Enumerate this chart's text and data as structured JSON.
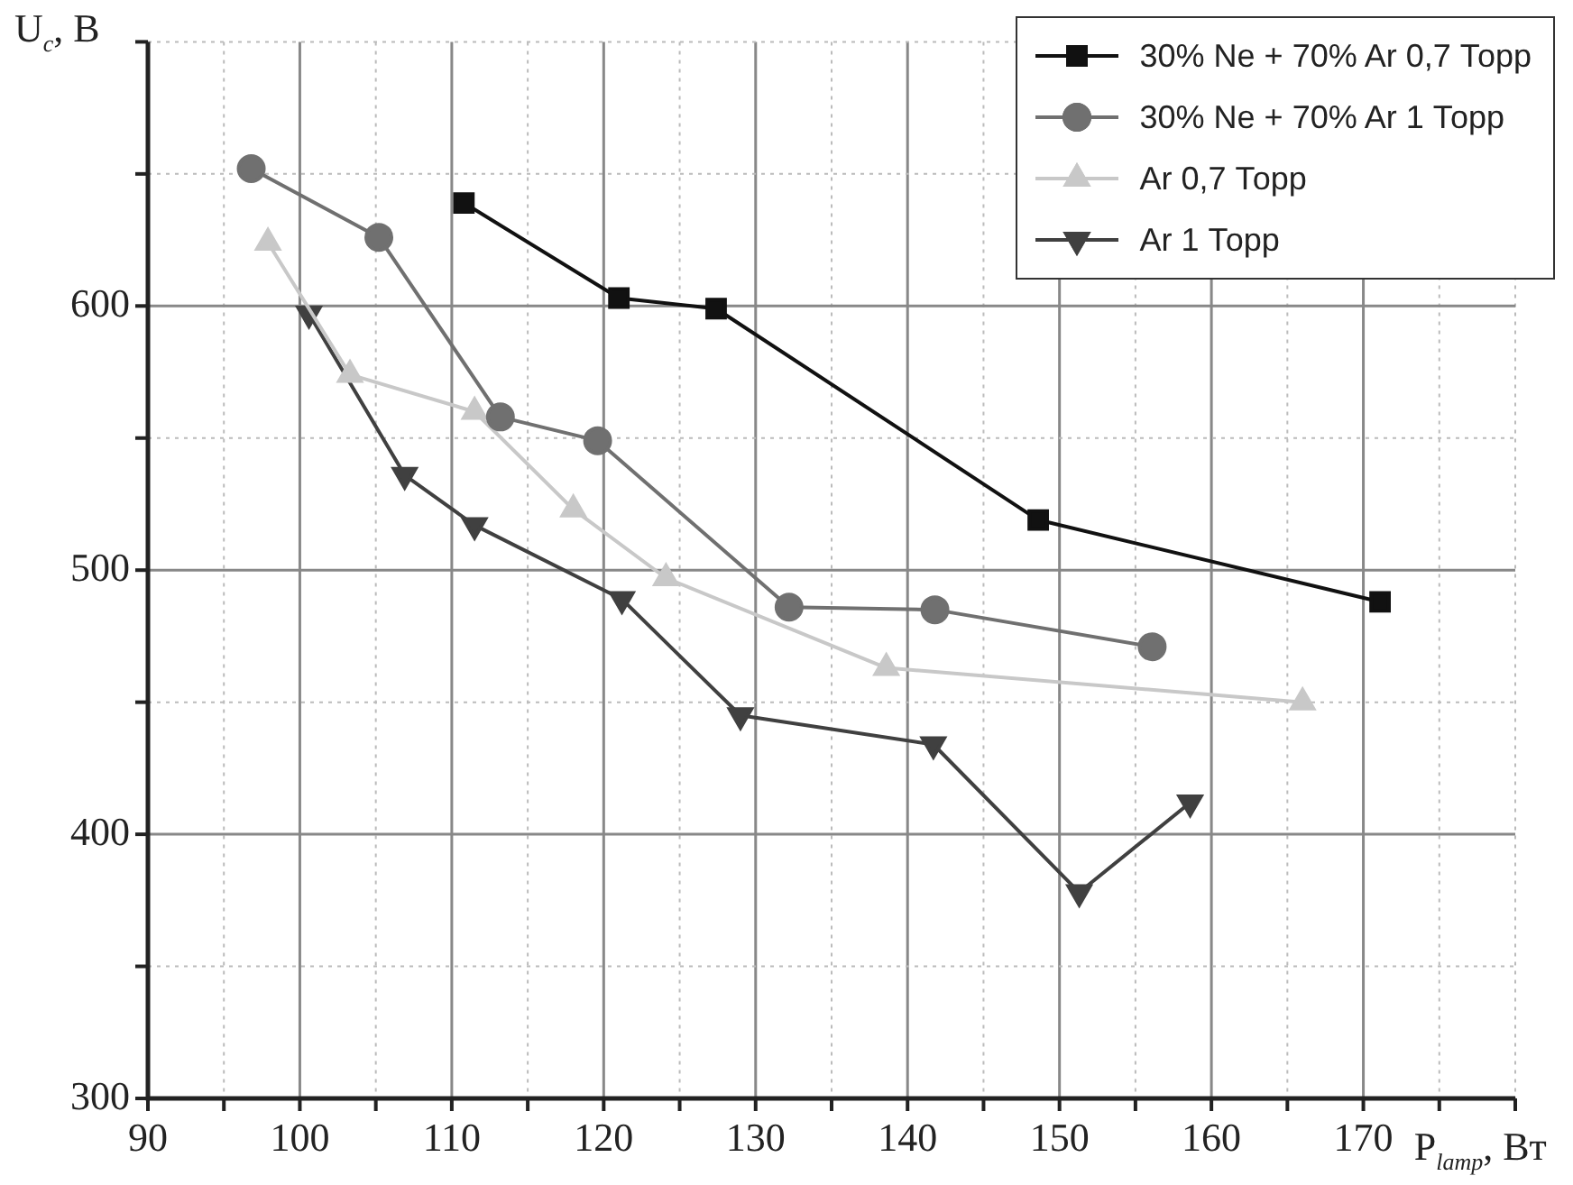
{
  "chart_data": {
    "type": "line",
    "xlabel": "P$_{lamp}$, Вт",
    "ylabel": "U$_{c}$, В",
    "xlim": [
      90,
      180
    ],
    "xticks": [
      90,
      {
        "value": 95,
        "label": null
      },
      100,
      {
        "value": 105,
        "label": null
      },
      110,
      {
        "value": 115,
        "label": null
      },
      120,
      {
        "value": 125,
        "label": null
      },
      130,
      {
        "value": 135,
        "label": null
      },
      140,
      {
        "value": 145,
        "label": null
      },
      150,
      {
        "value": 155,
        "label": null
      },
      160,
      {
        "value": 165,
        "label": null
      },
      170,
      {
        "value": 175,
        "label": null
      },
      {
        "value": 180,
        "label": null
      }
    ],
    "ylim": [
      300,
      700
    ],
    "yticks": [
      300,
      {
        "value": 350,
        "label": null
      },
      400,
      {
        "value": 450,
        "label": null
      },
      500,
      {
        "value": 550,
        "label": null
      },
      600,
      {
        "value": 650,
        "label": null
      },
      {
        "value": 700,
        "label": null
      }
    ],
    "grid": true,
    "legend": "top right",
    "line_style": "solid",
    "series": [
      {
        "name": "30% Ne + 70% Ar 0,7 Торр",
        "color": "#111111",
        "marker": "square",
        "x": [
          110.8,
          121.0,
          127.4,
          148.6,
          171.1
        ],
        "values": [
          639,
          603,
          599,
          519,
          488
        ]
      },
      {
        "name": "30% Ne + 70% Ar 1 Торр",
        "color": "#707070",
        "marker": "circle",
        "x": [
          96.8,
          105.2,
          113.2,
          119.6,
          132.2,
          141.8,
          156.1
        ],
        "values": [
          652,
          626,
          558,
          549,
          486,
          485,
          471
        ]
      },
      {
        "name": "Ar 0,7 Торр",
        "color": "#c8c8c8",
        "marker": "triangle",
        "x": [
          97.9,
          103.3,
          111.5,
          118.0,
          124.1,
          138.6,
          166.0
        ],
        "values": [
          624,
          574,
          560,
          523,
          497,
          463,
          450
        ]
      },
      {
        "name": "Ar 1 Торр",
        "color": "#404040",
        "marker": "triangle-down",
        "x": [
          100.6,
          106.9,
          111.5,
          121.2,
          129.0,
          141.7,
          151.3,
          158.6
        ],
        "values": [
          597,
          536,
          517,
          489,
          445,
          434,
          378,
          412
        ]
      }
    ]
  }
}
